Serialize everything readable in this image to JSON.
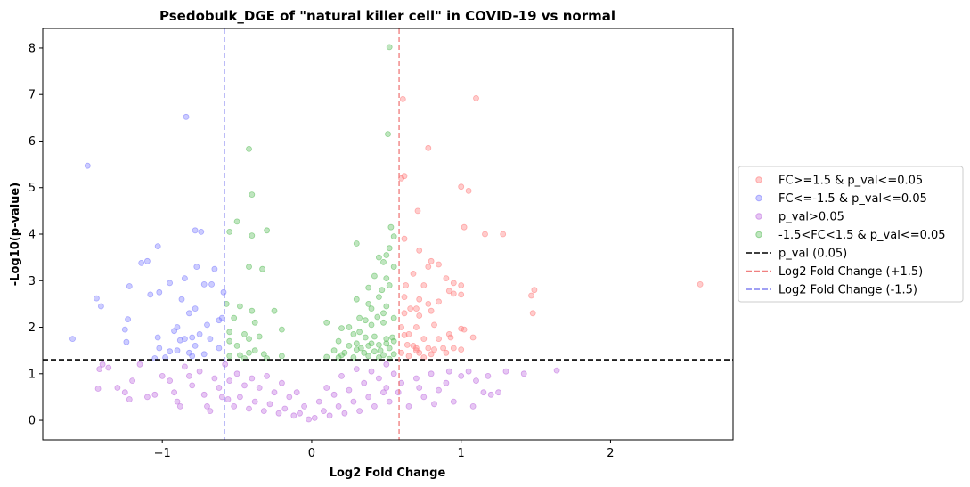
{
  "chart_data": {
    "type": "scatter",
    "title": "Psedobulk_DGE of \"natural killer cell\" in COVID-19 vs normal",
    "xlabel": "Log2 Fold Change",
    "ylabel": "-Log10(p-value)",
    "xlim": [
      -1.8,
      2.82
    ],
    "ylim": [
      -0.42,
      8.42
    ],
    "xticks": [
      -1,
      0,
      1,
      2
    ],
    "xtick_labels": [
      "−1",
      "0",
      "1",
      "2"
    ],
    "yticks": [
      0,
      1,
      2,
      3,
      4,
      5,
      6,
      7,
      8
    ],
    "grid": false,
    "legend_position": "right-outside",
    "reference_lines": [
      {
        "name": "p_val (0.05)",
        "orientation": "horizontal",
        "value": 1.301,
        "color": "#000000"
      },
      {
        "name": "Log2 Fold Change (+1.5)",
        "orientation": "vertical",
        "value": 0.585,
        "color": "#f08080"
      },
      {
        "name": "Log2 Fold Change (-1.5)",
        "orientation": "vertical",
        "value": -0.585,
        "color": "#8080f0"
      }
    ],
    "series": [
      {
        "name": "FC>=1.5 & p_val<=0.05",
        "color": "#ff7f7f",
        "points": [
          [
            0.61,
            6.9
          ],
          [
            1.1,
            6.92
          ],
          [
            0.78,
            5.85
          ],
          [
            0.62,
            5.25
          ],
          [
            0.6,
            5.2
          ],
          [
            1.0,
            5.02
          ],
          [
            1.05,
            4.93
          ],
          [
            0.71,
            4.5
          ],
          [
            1.02,
            4.15
          ],
          [
            1.16,
            4.0
          ],
          [
            1.28,
            4.0
          ],
          [
            0.62,
            3.9
          ],
          [
            0.72,
            3.65
          ],
          [
            0.8,
            3.42
          ],
          [
            0.85,
            3.35
          ],
          [
            0.78,
            3.3
          ],
          [
            0.68,
            3.15
          ],
          [
            0.9,
            3.05
          ],
          [
            0.95,
            2.95
          ],
          [
            1.0,
            2.9
          ],
          [
            0.63,
            2.9
          ],
          [
            0.75,
            2.9
          ],
          [
            2.6,
            2.92
          ],
          [
            1.49,
            2.8
          ],
          [
            1.47,
            2.68
          ],
          [
            0.62,
            2.65
          ],
          [
            0.72,
            2.6
          ],
          [
            0.78,
            2.5
          ],
          [
            0.85,
            2.55
          ],
          [
            0.92,
            2.78
          ],
          [
            0.95,
            2.72
          ],
          [
            0.7,
            2.4
          ],
          [
            0.8,
            2.35
          ],
          [
            1.0,
            2.7
          ],
          [
            0.62,
            2.3
          ],
          [
            0.66,
            2.4
          ],
          [
            0.72,
            2.25
          ],
          [
            1.48,
            2.3
          ],
          [
            0.6,
            2.0
          ],
          [
            0.7,
            2.0
          ],
          [
            1.0,
            1.97
          ],
          [
            1.02,
            1.95
          ],
          [
            0.82,
            2.05
          ],
          [
            0.65,
            1.85
          ],
          [
            0.62,
            1.83
          ],
          [
            0.92,
            1.85
          ],
          [
            0.93,
            1.78
          ],
          [
            0.75,
            1.75
          ],
          [
            0.85,
            1.75
          ],
          [
            1.08,
            1.78
          ],
          [
            0.68,
            1.6
          ],
          [
            0.7,
            1.55
          ],
          [
            0.78,
            1.55
          ],
          [
            0.82,
            1.52
          ],
          [
            0.88,
            1.55
          ],
          [
            0.95,
            1.55
          ],
          [
            1.0,
            1.52
          ],
          [
            0.6,
            1.45
          ],
          [
            0.72,
            1.45
          ],
          [
            0.8,
            1.42
          ],
          [
            0.9,
            1.45
          ],
          [
            0.65,
            1.38
          ],
          [
            0.75,
            1.35
          ],
          [
            0.7,
            1.5
          ],
          [
            0.64,
            1.62
          ]
        ]
      },
      {
        "name": "FC<=-1.5 & p_val<=0.05",
        "color": "#7f7fff",
        "points": [
          [
            -0.84,
            6.52
          ],
          [
            -1.5,
            5.47
          ],
          [
            -0.78,
            4.08
          ],
          [
            -0.74,
            4.05
          ],
          [
            -1.03,
            3.74
          ],
          [
            -1.1,
            3.42
          ],
          [
            -1.14,
            3.38
          ],
          [
            -0.77,
            3.3
          ],
          [
            -0.65,
            3.25
          ],
          [
            -0.85,
            3.05
          ],
          [
            -0.95,
            2.95
          ],
          [
            -0.72,
            2.92
          ],
          [
            -0.67,
            2.92
          ],
          [
            -1.02,
            2.75
          ],
          [
            -1.22,
            2.88
          ],
          [
            -1.08,
            2.7
          ],
          [
            -0.59,
            2.75
          ],
          [
            -1.44,
            2.62
          ],
          [
            -0.87,
            2.6
          ],
          [
            -1.41,
            2.45
          ],
          [
            -0.78,
            2.4
          ],
          [
            -0.82,
            2.3
          ],
          [
            -0.6,
            2.2
          ],
          [
            -0.62,
            2.15
          ],
          [
            -1.23,
            2.17
          ],
          [
            -0.9,
            2.0
          ],
          [
            -0.7,
            2.05
          ],
          [
            -0.92,
            1.92
          ],
          [
            -1.25,
            1.95
          ],
          [
            -0.75,
            1.85
          ],
          [
            -0.8,
            1.78
          ],
          [
            -0.85,
            1.75
          ],
          [
            -1.03,
            1.78
          ],
          [
            -1.6,
            1.75
          ],
          [
            -0.68,
            1.75
          ],
          [
            -0.88,
            1.72
          ],
          [
            -1.24,
            1.68
          ],
          [
            -0.78,
            1.6
          ],
          [
            -1.02,
            1.55
          ],
          [
            -0.62,
            1.55
          ],
          [
            -0.9,
            1.5
          ],
          [
            -0.95,
            1.48
          ],
          [
            -0.82,
            1.45
          ],
          [
            -0.72,
            1.42
          ],
          [
            -0.8,
            1.38
          ],
          [
            -1.05,
            1.33
          ],
          [
            -0.98,
            1.35
          ]
        ]
      },
      {
        "name": "p_val>0.05",
        "color": "#c070e0",
        "points": [
          [
            -1.42,
            1.1
          ],
          [
            -1.4,
            1.2
          ],
          [
            -1.36,
            1.13
          ],
          [
            -1.43,
            0.68
          ],
          [
            -1.25,
            0.6
          ],
          [
            -1.22,
            0.45
          ],
          [
            -1.15,
            1.2
          ],
          [
            -1.1,
            0.5
          ],
          [
            -1.05,
            0.55
          ],
          [
            -1.0,
            0.95
          ],
          [
            -0.95,
            0.85
          ],
          [
            -0.9,
            0.4
          ],
          [
            -0.85,
            1.15
          ],
          [
            -0.8,
            0.75
          ],
          [
            -0.75,
            1.05
          ],
          [
            -0.7,
            0.3
          ],
          [
            -0.65,
            0.9
          ],
          [
            -0.6,
            0.5
          ],
          [
            -0.58,
            1.2
          ],
          [
            -1.3,
            0.7
          ],
          [
            -1.2,
            0.85
          ],
          [
            -0.92,
            0.6
          ],
          [
            -0.88,
            0.3
          ],
          [
            -0.82,
            0.95
          ],
          [
            -0.72,
            0.55
          ],
          [
            -0.68,
            0.2
          ],
          [
            -0.62,
            0.7
          ],
          [
            1.05,
            1.05
          ],
          [
            1.0,
            0.95
          ],
          [
            1.1,
            0.85
          ],
          [
            1.15,
            0.6
          ],
          [
            1.2,
            0.55
          ],
          [
            1.25,
            0.6
          ],
          [
            1.3,
            1.05
          ],
          [
            1.42,
            1.0
          ],
          [
            1.64,
            1.07
          ],
          [
            0.95,
            0.4
          ],
          [
            0.9,
            0.8
          ],
          [
            0.85,
            0.65
          ],
          [
            0.8,
            1.0
          ],
          [
            0.75,
            0.5
          ],
          [
            0.7,
            0.9
          ],
          [
            0.65,
            0.3
          ],
          [
            0.6,
            0.8
          ],
          [
            0.92,
            1.05
          ],
          [
            0.82,
            0.35
          ],
          [
            0.72,
            0.7
          ],
          [
            1.18,
            0.95
          ],
          [
            1.08,
            0.3
          ],
          [
            -0.5,
            1.0
          ],
          [
            -0.4,
            0.9
          ],
          [
            -0.3,
            0.95
          ],
          [
            -0.2,
            0.8
          ],
          [
            -0.1,
            0.6
          ],
          [
            0.1,
            0.7
          ],
          [
            0.2,
            0.95
          ],
          [
            0.3,
            1.1
          ],
          [
            0.4,
            1.05
          ],
          [
            0.5,
            1.2
          ],
          [
            0.45,
            0.9
          ],
          [
            0.35,
            0.8
          ],
          [
            0.25,
            0.65
          ],
          [
            0.15,
            0.55
          ],
          [
            0.05,
            0.4
          ],
          [
            -0.05,
            0.3
          ],
          [
            -0.15,
            0.5
          ],
          [
            -0.25,
            0.6
          ],
          [
            -0.35,
            0.7
          ],
          [
            -0.45,
            0.75
          ],
          [
            -0.55,
            0.85
          ],
          [
            0.55,
            1.0
          ],
          [
            0.48,
            0.6
          ],
          [
            0.38,
            0.5
          ],
          [
            0.28,
            0.4
          ],
          [
            0.18,
            0.3
          ],
          [
            0.08,
            0.2
          ],
          [
            -0.08,
            0.15
          ],
          [
            -0.18,
            0.25
          ],
          [
            -0.28,
            0.35
          ],
          [
            -0.38,
            0.4
          ],
          [
            -0.48,
            0.5
          ],
          [
            0.42,
            0.3
          ],
          [
            0.32,
            0.2
          ],
          [
            0.22,
            0.15
          ],
          [
            0.12,
            0.1
          ],
          [
            0.02,
            0.05
          ],
          [
            -0.02,
            0.02
          ],
          [
            -0.12,
            0.1
          ],
          [
            -0.22,
            0.15
          ],
          [
            -0.32,
            0.2
          ],
          [
            -0.42,
            0.25
          ],
          [
            -0.52,
            0.3
          ],
          [
            0.52,
            0.4
          ],
          [
            0.58,
            0.6
          ],
          [
            0.5,
            0.7
          ],
          [
            -0.56,
            0.45
          ]
        ]
      },
      {
        "name": "-1.5<FC<1.5 & p_val<=0.05",
        "color": "#5fbf5f",
        "points": [
          [
            0.52,
            8.02
          ],
          [
            0.51,
            6.15
          ],
          [
            -0.42,
            5.83
          ],
          [
            -0.4,
            4.85
          ],
          [
            -0.5,
            4.27
          ],
          [
            0.53,
            4.15
          ],
          [
            -0.55,
            4.05
          ],
          [
            -0.3,
            4.08
          ],
          [
            -0.4,
            3.97
          ],
          [
            0.55,
            3.95
          ],
          [
            0.52,
            3.7
          ],
          [
            0.5,
            3.55
          ],
          [
            0.3,
            3.8
          ],
          [
            0.45,
            3.5
          ],
          [
            -0.42,
            3.3
          ],
          [
            -0.33,
            3.25
          ],
          [
            0.48,
            3.4
          ],
          [
            0.55,
            3.3
          ],
          [
            0.42,
            3.1
          ],
          [
            0.5,
            3.05
          ],
          [
            0.38,
            2.85
          ],
          [
            0.47,
            2.8
          ],
          [
            0.52,
            2.9
          ],
          [
            -0.57,
            2.5
          ],
          [
            -0.48,
            2.45
          ],
          [
            -0.4,
            2.35
          ],
          [
            -0.25,
            2.35
          ],
          [
            0.3,
            2.6
          ],
          [
            0.38,
            2.5
          ],
          [
            0.45,
            2.65
          ],
          [
            0.4,
            2.4
          ],
          [
            0.48,
            2.3
          ],
          [
            0.55,
            2.2
          ],
          [
            -0.52,
            2.2
          ],
          [
            -0.38,
            2.1
          ],
          [
            -0.2,
            1.95
          ],
          [
            0.1,
            2.1
          ],
          [
            0.2,
            1.98
          ],
          [
            0.25,
            2.0
          ],
          [
            0.32,
            1.9
          ],
          [
            0.4,
            2.05
          ],
          [
            0.48,
            2.1
          ],
          [
            -0.55,
            1.9
          ],
          [
            -0.45,
            1.85
          ],
          [
            -0.35,
            1.8
          ],
          [
            -0.42,
            1.75
          ],
          [
            0.28,
            1.85
          ],
          [
            0.36,
            1.78
          ],
          [
            0.42,
            1.8
          ],
          [
            0.5,
            1.75
          ],
          [
            0.55,
            1.7
          ],
          [
            0.18,
            1.7
          ],
          [
            0.3,
            1.65
          ],
          [
            0.25,
            1.6
          ],
          [
            0.38,
            1.6
          ],
          [
            0.45,
            1.62
          ],
          [
            0.52,
            1.55
          ],
          [
            -0.55,
            1.7
          ],
          [
            -0.5,
            1.6
          ],
          [
            -0.38,
            1.5
          ],
          [
            -0.42,
            1.45
          ],
          [
            -0.32,
            1.42
          ],
          [
            -0.2,
            1.38
          ],
          [
            -0.48,
            1.4
          ],
          [
            -0.55,
            1.38
          ],
          [
            0.15,
            1.5
          ],
          [
            0.22,
            1.45
          ],
          [
            0.3,
            1.52
          ],
          [
            0.35,
            1.45
          ],
          [
            0.42,
            1.48
          ],
          [
            0.48,
            1.4
          ],
          [
            0.55,
            1.42
          ],
          [
            0.18,
            1.35
          ],
          [
            0.28,
            1.35
          ],
          [
            0.38,
            1.38
          ],
          [
            0.45,
            1.35
          ],
          [
            0.52,
            1.32
          ],
          [
            -0.3,
            1.33
          ],
          [
            -0.45,
            1.33
          ],
          [
            0.1,
            1.36
          ],
          [
            0.2,
            1.4
          ],
          [
            0.33,
            1.55
          ],
          [
            0.4,
            1.65
          ],
          [
            0.46,
            1.5
          ],
          [
            0.5,
            1.65
          ],
          [
            0.54,
            1.78
          ],
          [
            0.32,
            2.2
          ],
          [
            0.36,
            2.15
          ],
          [
            0.44,
            2.22
          ],
          [
            0.5,
            2.45
          ]
        ]
      }
    ]
  }
}
